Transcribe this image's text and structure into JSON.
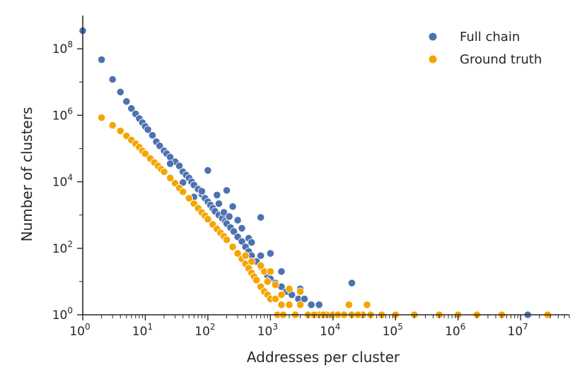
{
  "chart_data": {
    "type": "scatter",
    "xlabel": "Addresses per cluster",
    "ylabel": "Number of clusters",
    "xscale": "log",
    "yscale": "log",
    "xlim": [
      1,
      60000000
    ],
    "ylim": [
      1,
      1000000000
    ],
    "xticks": [
      {
        "base": "10",
        "exp": "0",
        "value": 1
      },
      {
        "base": "10",
        "exp": "1",
        "value": 10
      },
      {
        "base": "10",
        "exp": "2",
        "value": 100
      },
      {
        "base": "10",
        "exp": "3",
        "value": 1000
      },
      {
        "base": "10",
        "exp": "4",
        "value": 10000
      },
      {
        "base": "10",
        "exp": "5",
        "value": 100000
      },
      {
        "base": "10",
        "exp": "6",
        "value": 1000000
      },
      {
        "base": "10",
        "exp": "7",
        "value": 10000000
      }
    ],
    "yticks": [
      {
        "base": "10",
        "exp": "0",
        "value": 1
      },
      {
        "base": "10",
        "exp": "2",
        "value": 100
      },
      {
        "base": "10",
        "exp": "4",
        "value": 10000
      },
      {
        "base": "10",
        "exp": "6",
        "value": 1000000
      },
      {
        "base": "10",
        "exp": "8",
        "value": 100000000
      }
    ],
    "legend_position": "top-right",
    "series": [
      {
        "name": "Full chain",
        "color": "#4c72b0",
        "points": [
          [
            1,
            350000000
          ],
          [
            2,
            47000000
          ],
          [
            3,
            12000000
          ],
          [
            4,
            5000000
          ],
          [
            5,
            2600000
          ],
          [
            6,
            1600000
          ],
          [
            7,
            1100000
          ],
          [
            8,
            800000
          ],
          [
            9,
            600000
          ],
          [
            10,
            460000
          ],
          [
            11,
            370000
          ],
          [
            13,
            250000
          ],
          [
            15,
            160000
          ],
          [
            17,
            120000
          ],
          [
            20,
            85000
          ],
          [
            22,
            70000
          ],
          [
            25,
            55000
          ],
          [
            30,
            40000
          ],
          [
            35,
            30000
          ],
          [
            40,
            20000
          ],
          [
            45,
            16000
          ],
          [
            50,
            13000
          ],
          [
            55,
            10000
          ],
          [
            60,
            8000
          ],
          [
            70,
            6000
          ],
          [
            80,
            4200
          ],
          [
            90,
            3200
          ],
          [
            100,
            2500
          ],
          [
            110,
            2000
          ],
          [
            120,
            1600
          ],
          [
            130,
            1300
          ],
          [
            150,
            1000
          ],
          [
            170,
            800
          ],
          [
            190,
            650
          ],
          [
            200,
            550
          ],
          [
            230,
            420
          ],
          [
            260,
            320
          ],
          [
            300,
            220
          ],
          [
            350,
            160
          ],
          [
            400,
            110
          ],
          [
            450,
            80
          ],
          [
            500,
            60
          ],
          [
            600,
            40
          ],
          [
            700,
            28
          ],
          [
            800,
            20
          ],
          [
            900,
            15
          ],
          [
            1000,
            12
          ],
          [
            1200,
            9
          ],
          [
            1500,
            7
          ],
          [
            1800,
            5
          ],
          [
            2200,
            4
          ],
          [
            2800,
            3
          ],
          [
            3500,
            3
          ],
          [
            4500,
            2
          ],
          [
            6000,
            2
          ],
          [
            8000,
            1
          ],
          [
            100,
            22000
          ],
          [
            200,
            5500
          ],
          [
            700,
            850
          ],
          [
            1000,
            70
          ],
          [
            140,
            4000
          ],
          [
            250,
            1800
          ],
          [
            300,
            700
          ],
          [
            450,
            200
          ],
          [
            20000,
            9
          ],
          [
            13000000,
            1
          ],
          [
            25,
            35000
          ],
          [
            40,
            9500
          ],
          [
            60,
            3500
          ],
          [
            80,
            5200
          ],
          [
            150,
            2200
          ],
          [
            180,
            1200
          ],
          [
            220,
            900
          ],
          [
            350,
            400
          ],
          [
            500,
            150
          ],
          [
            700,
            60
          ],
          [
            1500,
            20
          ],
          [
            3000,
            6
          ]
        ]
      },
      {
        "name": "Ground truth",
        "color": "#f5a500",
        "points": [
          [
            2,
            850000
          ],
          [
            3,
            500000
          ],
          [
            4,
            340000
          ],
          [
            5,
            240000
          ],
          [
            6,
            180000
          ],
          [
            7,
            140000
          ],
          [
            8,
            110000
          ],
          [
            9,
            85000
          ],
          [
            10,
            70000
          ],
          [
            12,
            50000
          ],
          [
            14,
            38000
          ],
          [
            16,
            30000
          ],
          [
            18,
            24000
          ],
          [
            20,
            20000
          ],
          [
            25,
            13000
          ],
          [
            30,
            9000
          ],
          [
            35,
            6500
          ],
          [
            40,
            5000
          ],
          [
            50,
            3200
          ],
          [
            60,
            2200
          ],
          [
            70,
            1600
          ],
          [
            80,
            1200
          ],
          [
            90,
            950
          ],
          [
            100,
            750
          ],
          [
            120,
            520
          ],
          [
            140,
            380
          ],
          [
            160,
            290
          ],
          [
            180,
            230
          ],
          [
            200,
            180
          ],
          [
            250,
            110
          ],
          [
            300,
            70
          ],
          [
            350,
            48
          ],
          [
            400,
            34
          ],
          [
            450,
            25
          ],
          [
            500,
            18
          ],
          [
            550,
            14
          ],
          [
            600,
            11
          ],
          [
            700,
            7
          ],
          [
            800,
            5
          ],
          [
            900,
            4
          ],
          [
            1000,
            3
          ],
          [
            1200,
            3
          ],
          [
            1500,
            2
          ],
          [
            2000,
            2
          ],
          [
            3000,
            2
          ],
          [
            4000,
            1
          ],
          [
            6000,
            1
          ],
          [
            8000,
            1
          ],
          [
            10000,
            1
          ],
          [
            15000,
            1
          ],
          [
            20000,
            1
          ],
          [
            30000,
            1
          ],
          [
            40000,
            1
          ],
          [
            60000,
            1
          ],
          [
            100000,
            1
          ],
          [
            200000,
            1
          ],
          [
            500000,
            1
          ],
          [
            1000000,
            1
          ],
          [
            2000000,
            1
          ],
          [
            5000000,
            1
          ],
          [
            27000000,
            1
          ],
          [
            1300,
            1
          ],
          [
            1600,
            1
          ],
          [
            2500,
            1
          ],
          [
            5000,
            1
          ],
          [
            7000,
            1
          ],
          [
            12000,
            1
          ],
          [
            25000,
            1
          ],
          [
            35000,
            2
          ],
          [
            18000,
            2
          ],
          [
            800,
            20
          ],
          [
            1000,
            20
          ],
          [
            1200,
            8
          ],
          [
            2000,
            6
          ],
          [
            3000,
            5
          ],
          [
            700,
            30
          ],
          [
            500,
            40
          ],
          [
            400,
            60
          ],
          [
            900,
            10
          ],
          [
            1500,
            4
          ]
        ]
      }
    ]
  }
}
